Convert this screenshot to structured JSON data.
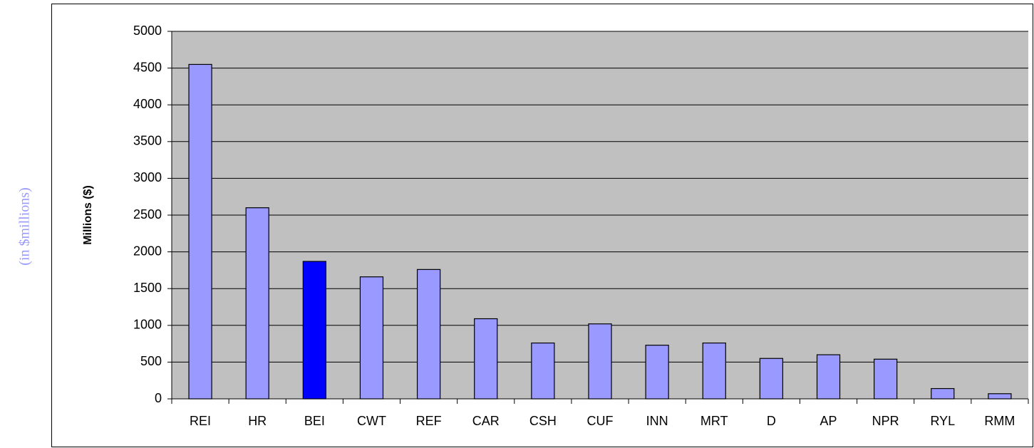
{
  "chart_data": {
    "type": "bar",
    "annotation": "(in $millions)",
    "y_label": "Millions ($)",
    "categories": [
      "REI",
      "HR",
      "BEI",
      "CWT",
      "REF",
      "CAR",
      "CSH",
      "CUF",
      "INN",
      "MRT",
      "D",
      "AP",
      "NPR",
      "RYL",
      "RMM"
    ],
    "values": [
      4550,
      2600,
      1870,
      1660,
      1760,
      1090,
      760,
      1020,
      730,
      760,
      550,
      600,
      540,
      140,
      70
    ],
    "colors": [
      "#9999ff",
      "#9999ff",
      "#0000ff",
      "#9999ff",
      "#9999ff",
      "#9999ff",
      "#9999ff",
      "#9999ff",
      "#9999ff",
      "#9999ff",
      "#9999ff",
      "#9999ff",
      "#9999ff",
      "#9999ff",
      "#9999ff"
    ],
    "ylim": [
      0,
      5000
    ],
    "yticks": [
      0,
      500,
      1000,
      1500,
      2000,
      2500,
      3000,
      3500,
      4000,
      4500,
      5000
    ],
    "grid": true,
    "plot_background": "#c0c0c0"
  }
}
